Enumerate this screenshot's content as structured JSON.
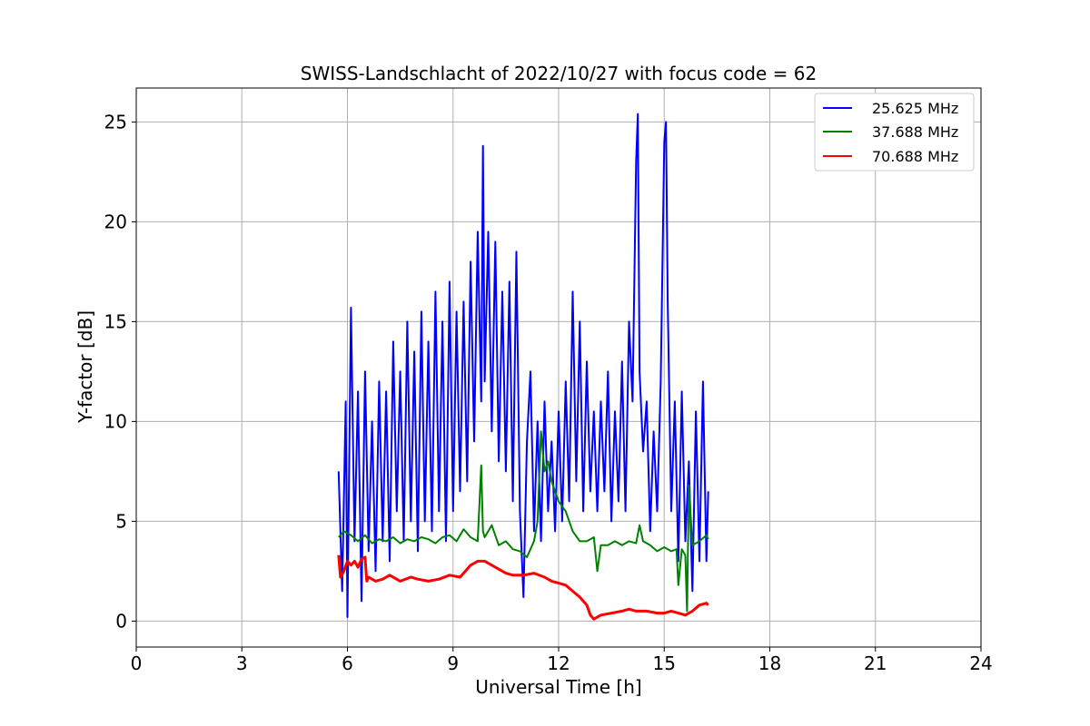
{
  "chart_data": {
    "type": "line",
    "title": "SWISS-Landschlacht of 2022/10/27 with focus code = 62",
    "xlabel": "Universal Time [h]",
    "ylabel": "Y-factor [dB]",
    "xlim": [
      0,
      24
    ],
    "ylim": [
      -1.3,
      26.7
    ],
    "xticks": [
      0,
      3,
      6,
      9,
      12,
      15,
      18,
      21,
      24
    ],
    "yticks": [
      0,
      5,
      10,
      15,
      20,
      25
    ],
    "grid": true,
    "legend_position": "top-right",
    "series": [
      {
        "name": "25.625 MHz",
        "color": "#0000ff",
        "x": [
          5.75,
          5.85,
          5.95,
          6.0,
          6.1,
          6.2,
          6.3,
          6.4,
          6.5,
          6.6,
          6.7,
          6.8,
          6.9,
          7.0,
          7.1,
          7.2,
          7.3,
          7.4,
          7.5,
          7.6,
          7.7,
          7.8,
          7.9,
          8.0,
          8.1,
          8.2,
          8.3,
          8.4,
          8.5,
          8.6,
          8.7,
          8.8,
          8.9,
          9.0,
          9.1,
          9.2,
          9.3,
          9.4,
          9.5,
          9.6,
          9.7,
          9.8,
          9.85,
          9.9,
          10.0,
          10.1,
          10.2,
          10.3,
          10.4,
          10.5,
          10.6,
          10.7,
          10.8,
          10.9,
          11.0,
          11.1,
          11.2,
          11.3,
          11.4,
          11.5,
          11.6,
          11.7,
          11.8,
          11.9,
          12.0,
          12.1,
          12.2,
          12.3,
          12.4,
          12.5,
          12.6,
          12.7,
          12.8,
          12.9,
          13.0,
          13.1,
          13.2,
          13.3,
          13.4,
          13.5,
          13.6,
          13.7,
          13.8,
          13.9,
          14.0,
          14.1,
          14.2,
          14.25,
          14.3,
          14.4,
          14.5,
          14.6,
          14.7,
          14.8,
          14.9,
          15.0,
          15.05,
          15.1,
          15.2,
          15.3,
          15.4,
          15.5,
          15.6,
          15.7,
          15.8,
          15.9,
          16.0,
          16.1,
          16.2,
          16.25
        ],
        "y": [
          7.5,
          1.5,
          11.0,
          0.2,
          15.7,
          4.0,
          11.5,
          1.0,
          12.5,
          3.5,
          10.0,
          2.5,
          12.0,
          4.0,
          11.5,
          3.0,
          14.0,
          5.5,
          12.5,
          4.0,
          15.0,
          5.0,
          13.5,
          3.5,
          15.5,
          5.0,
          14.0,
          4.5,
          16.5,
          5.5,
          15.0,
          4.0,
          17.0,
          5.5,
          15.5,
          6.5,
          16.0,
          7.0,
          18.0,
          9.0,
          19.5,
          11.0,
          23.8,
          12.0,
          19.5,
          9.5,
          19.0,
          8.0,
          16.5,
          7.5,
          17.0,
          6.0,
          18.5,
          5.5,
          1.2,
          9.0,
          12.5,
          4.5,
          10.0,
          4.0,
          11.0,
          5.5,
          9.0,
          4.5,
          10.5,
          5.0,
          12.0,
          6.0,
          16.5,
          7.0,
          15.0,
          5.5,
          13.0,
          6.5,
          10.5,
          5.5,
          11.0,
          6.5,
          12.5,
          5.0,
          10.5,
          6.0,
          13.0,
          5.5,
          15.0,
          11.0,
          23.0,
          25.4,
          12.5,
          8.5,
          11.0,
          4.5,
          9.5,
          5.5,
          12.0,
          24.0,
          25.0,
          16.0,
          5.5,
          11.0,
          3.0,
          11.5,
          4.0,
          8.0,
          1.5,
          10.5,
          3.0,
          12.0,
          3.0,
          6.5
        ]
      },
      {
        "name": "37.688 MHz",
        "color": "#008000",
        "x": [
          5.75,
          5.9,
          6.1,
          6.3,
          6.5,
          6.7,
          6.9,
          7.1,
          7.3,
          7.5,
          7.7,
          7.9,
          8.1,
          8.3,
          8.5,
          8.7,
          8.9,
          9.1,
          9.3,
          9.5,
          9.7,
          9.8,
          9.85,
          9.9,
          10.1,
          10.3,
          10.5,
          10.7,
          10.9,
          11.1,
          11.3,
          11.4,
          11.5,
          11.6,
          11.7,
          11.8,
          11.9,
          12.0,
          12.2,
          12.4,
          12.6,
          12.8,
          13.0,
          13.1,
          13.2,
          13.4,
          13.6,
          13.8,
          14.0,
          14.2,
          14.3,
          14.4,
          14.6,
          14.8,
          15.0,
          15.2,
          15.35,
          15.4,
          15.5,
          15.6,
          15.65,
          15.7,
          15.8,
          16.0,
          16.2,
          16.25
        ],
        "y": [
          4.2,
          4.5,
          4.3,
          4.0,
          4.3,
          3.9,
          4.1,
          4.0,
          4.2,
          3.9,
          4.1,
          4.0,
          4.2,
          4.1,
          3.9,
          4.2,
          4.3,
          4.0,
          4.6,
          4.2,
          4.0,
          7.8,
          4.5,
          4.2,
          4.8,
          3.8,
          4.0,
          3.6,
          3.5,
          3.2,
          4.0,
          5.0,
          9.5,
          7.5,
          8.0,
          7.0,
          6.5,
          6.0,
          5.5,
          4.5,
          4.0,
          4.0,
          4.2,
          2.5,
          3.8,
          3.8,
          4.0,
          3.8,
          4.0,
          3.9,
          4.8,
          4.0,
          3.8,
          3.5,
          3.7,
          3.5,
          3.6,
          1.8,
          3.6,
          3.3,
          0.5,
          6.8,
          3.8,
          4.0,
          4.3,
          4.1
        ]
      },
      {
        "name": "70.688 MHz",
        "color": "#ff0000",
        "x": [
          5.75,
          5.8,
          5.9,
          6.0,
          6.1,
          6.2,
          6.3,
          6.4,
          6.5,
          6.55,
          6.6,
          6.8,
          7.0,
          7.2,
          7.5,
          7.8,
          8.0,
          8.3,
          8.6,
          8.9,
          9.2,
          9.5,
          9.7,
          9.9,
          10.1,
          10.3,
          10.5,
          10.7,
          11.0,
          11.3,
          11.6,
          11.8,
          12.0,
          12.2,
          12.4,
          12.6,
          12.8,
          12.9,
          13.0,
          13.2,
          13.5,
          13.8,
          14.0,
          14.2,
          14.5,
          14.8,
          15.0,
          15.2,
          15.4,
          15.6,
          15.8,
          16.0,
          16.2,
          16.25
        ],
        "y": [
          3.3,
          2.2,
          2.5,
          3.0,
          2.8,
          3.0,
          2.7,
          3.1,
          3.2,
          2.0,
          2.2,
          2.0,
          2.1,
          2.3,
          2.0,
          2.2,
          2.1,
          2.0,
          2.1,
          2.3,
          2.2,
          2.8,
          3.0,
          3.0,
          2.8,
          2.6,
          2.4,
          2.3,
          2.3,
          2.4,
          2.2,
          2.0,
          1.9,
          1.8,
          1.5,
          1.2,
          0.8,
          0.3,
          0.1,
          0.3,
          0.4,
          0.5,
          0.6,
          0.5,
          0.5,
          0.4,
          0.4,
          0.5,
          0.4,
          0.3,
          0.5,
          0.8,
          0.9,
          0.8
        ]
      }
    ]
  }
}
